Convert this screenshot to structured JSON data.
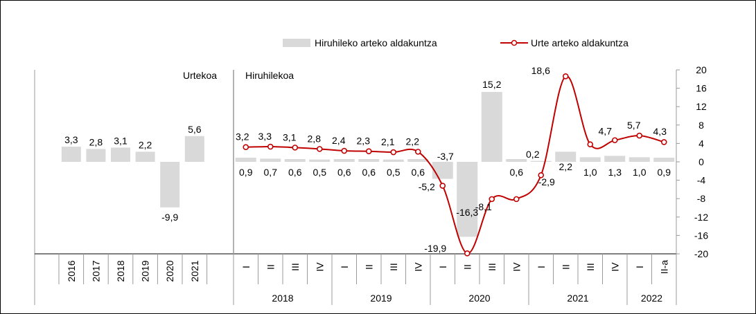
{
  "chart_data": [
    {
      "type": "bar",
      "panel_label": "Urtekoa",
      "categories": [
        "2016",
        "2017",
        "2018",
        "2019",
        "2020",
        "2021"
      ],
      "values": [
        3.3,
        2.8,
        3.1,
        2.2,
        -9.9,
        5.6
      ],
      "value_labels": [
        "3,3",
        "2,8",
        "3,1",
        "2,2",
        "-9,9",
        "5,6"
      ],
      "bar_color": "#d9d9d9",
      "ylim": [
        -20,
        20
      ]
    },
    {
      "type": "bar+line",
      "panel_label": "Hiruhilekoa",
      "legend": {
        "bars": "Hiruhileko arteko aldakuntza",
        "line": "Urte arteko aldakuntza",
        "position": "top"
      },
      "quarters": [
        "I",
        "II",
        "III",
        "IV",
        "I",
        "II",
        "III",
        "IV",
        "I",
        "II",
        "III",
        "IV",
        "I",
        "II",
        "III",
        "IV",
        "I",
        "II-a"
      ],
      "years": [
        {
          "label": "2018",
          "span": 4
        },
        {
          "label": "2019",
          "span": 4
        },
        {
          "label": "2020",
          "span": 4
        },
        {
          "label": "2021",
          "span": 4
        },
        {
          "label": "2022",
          "span": 2
        }
      ],
      "series": [
        {
          "name": "Hiruhileko arteko aldakuntza",
          "kind": "bar",
          "color": "#d9d9d9",
          "values": [
            0.9,
            0.7,
            0.6,
            0.5,
            0.6,
            0.6,
            0.5,
            0.6,
            -3.7,
            -16.3,
            15.2,
            0.6,
            0.2,
            2.2,
            1.0,
            1.3,
            1.0,
            0.9
          ],
          "labels": [
            "0,9",
            "0,7",
            "0,6",
            "0,5",
            "0,6",
            "0,6",
            "0,5",
            "0,6",
            "-3,7",
            "-16,3",
            "15,2",
            "0,6",
            "0,2",
            "2,2",
            "1,0",
            "1,3",
            "1,0",
            "0,9"
          ]
        },
        {
          "name": "Urte arteko aldakuntza",
          "kind": "line",
          "color": "#c00000",
          "values": [
            3.2,
            3.3,
            3.1,
            2.8,
            2.4,
            2.3,
            2.1,
            2.2,
            -5.2,
            -19.9,
            -8.1,
            -8.1,
            -2.9,
            18.6,
            3.8,
            4.7,
            5.7,
            4.3
          ],
          "labels": [
            "3,2",
            "3,3",
            "3,1",
            "2,8",
            "2,4",
            "2,3",
            "2,1",
            "2,2",
            "-5,2",
            "-19,9",
            "-8,1",
            "",
            "-2,9",
            "18,6",
            "",
            "4,7",
            "5,7",
            "4,3"
          ]
        }
      ],
      "ylim": [
        -20,
        20
      ],
      "yticks": [
        20,
        16,
        12,
        8,
        4,
        0,
        -4,
        -8,
        -12,
        -16,
        -20
      ]
    }
  ]
}
